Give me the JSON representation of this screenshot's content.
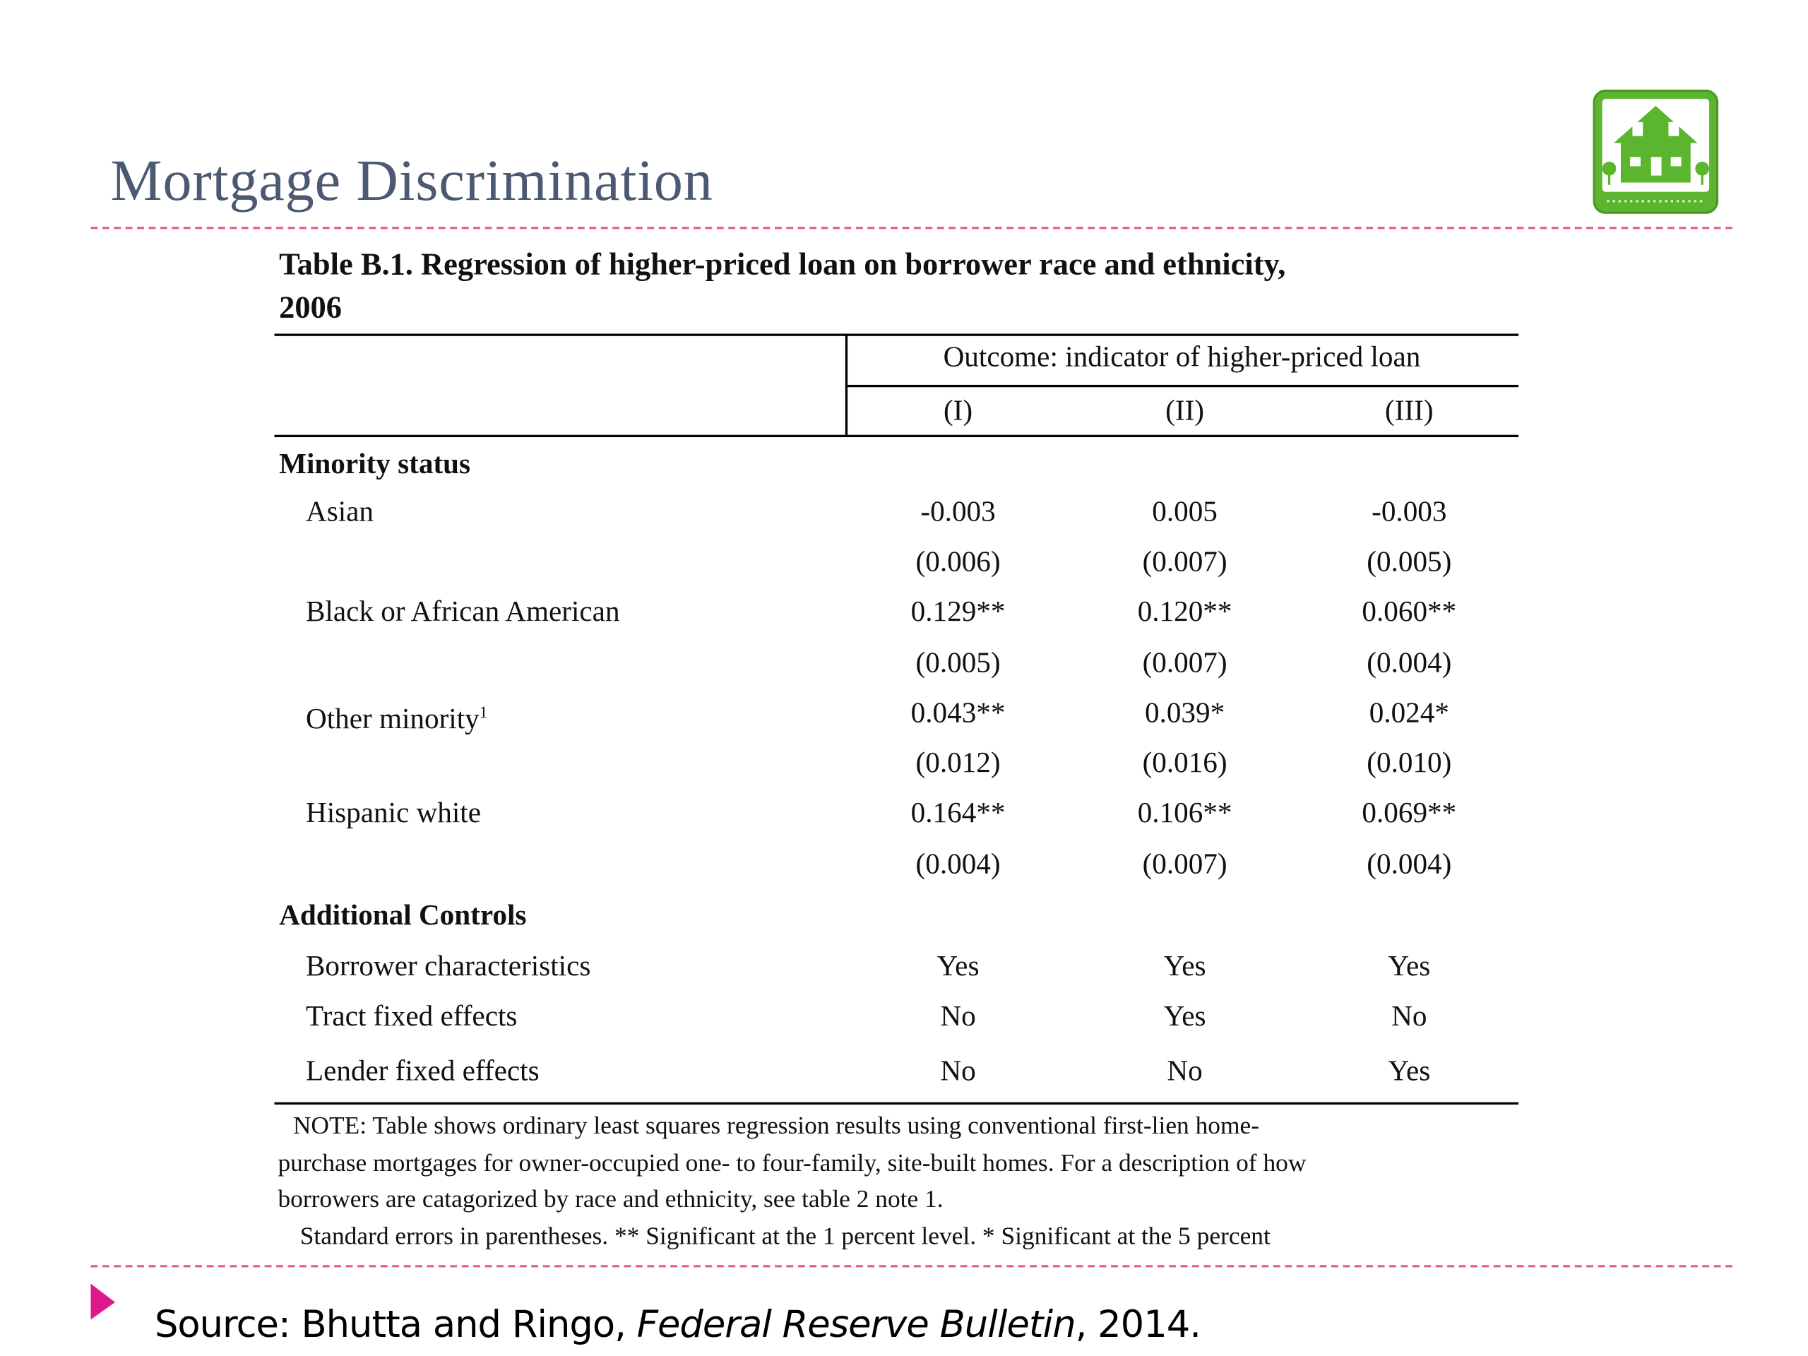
{
  "slide": {
    "title": "Mortgage Discrimination",
    "table": {
      "caption": [
        "Table B.1. Regression of higher-priced loan on borrower race and ethnicity,",
        "2006"
      ],
      "header": {
        "label": "Outcome: indicator of higher-priced loan",
        "columns": [
          "(I)",
          "(II)",
          "(III)"
        ]
      },
      "sections": [
        {
          "title": "Minority status",
          "rows": [
            {
              "label": "Asian",
              "values": [
                "-0.003",
                "0.005",
                "-0.003"
              ],
              "errors": [
                "(0.006)",
                "(0.007)",
                "(0.005)"
              ]
            },
            {
              "label": "Black or African American",
              "values": [
                "0.129**",
                "0.120**",
                "0.060**"
              ],
              "errors": [
                "(0.005)",
                "(0.007)",
                "(0.004)"
              ]
            },
            {
              "label": "Other minority",
              "footnote": "1",
              "values": [
                "0.043**",
                "0.039*",
                "0.024*"
              ],
              "errors": [
                "(0.012)",
                "(0.016)",
                "(0.010)"
              ]
            },
            {
              "label": "Hispanic white",
              "values": [
                "0.164**",
                "0.106**",
                "0.069**"
              ],
              "errors": [
                "(0.004)",
                "(0.007)",
                "(0.004)"
              ]
            }
          ]
        },
        {
          "title": "Additional Controls",
          "rows": [
            {
              "label": "Borrower characteristics",
              "values": [
                "Yes",
                "Yes",
                "Yes"
              ]
            },
            {
              "label": "Tract fixed effects",
              "values": [
                "No",
                "Yes",
                "No"
              ]
            },
            {
              "label": "Lender fixed effects",
              "values": [
                "No",
                "No",
                "Yes"
              ]
            }
          ]
        }
      ],
      "note": [
        "NOTE: Table shows ordinary least squares regression results using conventional first-lien home-",
        "purchase mortgages for owner-occupied one- to four-family, site-built homes.  For a description of how",
        "borrowers are catagorized by race and ethnicity, see table 2 note 1.",
        "Standard errors in parentheses. ** Significant at the 1 percent level.  * Significant at the 5 percent"
      ]
    },
    "source": {
      "prefix": "Source: Bhutta and Ringo,",
      "journal": "Federal Reserve Bulletin",
      "suffix": ", 2014."
    }
  }
}
